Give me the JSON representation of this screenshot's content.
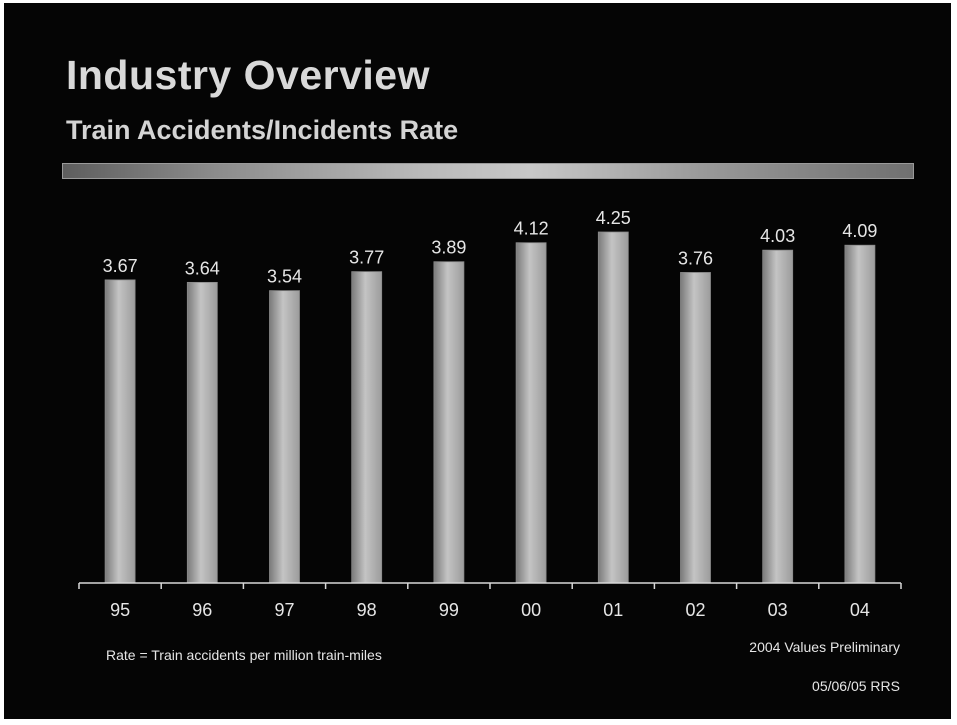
{
  "slide": {
    "title": "Industry Overview",
    "subtitle": "Train Accidents/Incidents Rate",
    "rate_note": "Rate = Train accidents per million train-miles",
    "prelim_note": "2004 Values Preliminary",
    "date_note": "05/06/05 RRS"
  },
  "colors": {
    "background": "#050505",
    "bar_fill": "#a8a8a8",
    "bar_highlight": "#c4c4c4",
    "text": "#e6e6e6"
  },
  "chart_data": {
    "type": "bar",
    "categories": [
      "95",
      "96",
      "97",
      "98",
      "99",
      "00",
      "01",
      "02",
      "03",
      "04"
    ],
    "values": [
      3.67,
      3.64,
      3.54,
      3.77,
      3.89,
      4.12,
      4.25,
      3.76,
      4.03,
      4.09
    ],
    "data_labels": [
      "3.67",
      "3.64",
      "3.54",
      "3.77",
      "3.89",
      "4.12",
      "4.25",
      "3.76",
      "4.03",
      "4.09"
    ],
    "title": "",
    "xlabel": "",
    "ylabel": "",
    "ylim": [
      0,
      4.25
    ],
    "grid": false,
    "legend": "none"
  }
}
